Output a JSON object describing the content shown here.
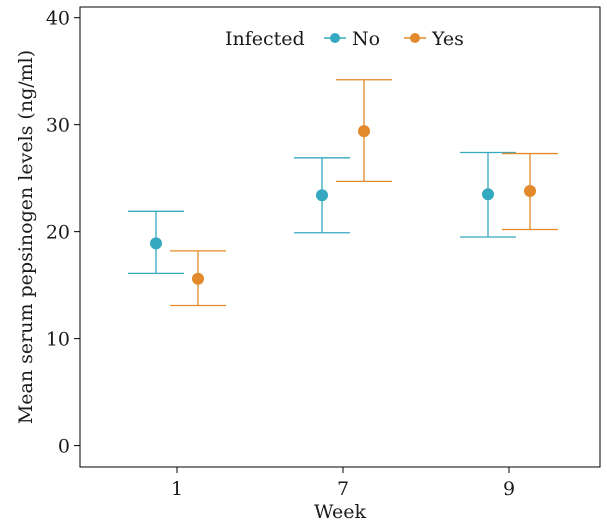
{
  "chart_data": {
    "type": "scatter",
    "title": "",
    "xlabel": "Week",
    "ylabel": "Mean serum pepsinogen levels (ng/ml)",
    "categories": [
      "1",
      "7",
      "9"
    ],
    "ylim": [
      -2,
      41
    ],
    "yticks": [
      0,
      10,
      20,
      30,
      40
    ],
    "grid": false,
    "legend": {
      "title": "Infected",
      "placement": "top"
    },
    "series": [
      {
        "name": "No",
        "color": "#35A9BF",
        "points": [
          {
            "x": "1",
            "mean": 18.9,
            "lower": 16.1,
            "upper": 21.9
          },
          {
            "x": "7",
            "mean": 23.4,
            "lower": 19.9,
            "upper": 26.9
          },
          {
            "x": "9",
            "mean": 23.5,
            "lower": 19.5,
            "upper": 27.4
          }
        ]
      },
      {
        "name": "Yes",
        "color": "#E28A2B",
        "points": [
          {
            "x": "1",
            "mean": 15.6,
            "lower": 13.1,
            "upper": 18.2
          },
          {
            "x": "7",
            "mean": 29.4,
            "lower": 24.7,
            "upper": 34.2
          },
          {
            "x": "9",
            "mean": 23.8,
            "lower": 20.2,
            "upper": 27.3
          }
        ]
      }
    ]
  }
}
